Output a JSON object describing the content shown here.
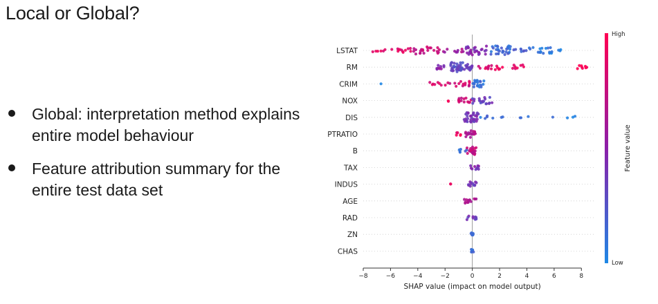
{
  "slide": {
    "title": "Local or Global?",
    "bullets": [
      "Global:  interpretation method explains entire model behaviour",
      "Feature attribution summary for the entire test data set"
    ]
  },
  "colors": {
    "high": "#ff0052",
    "low": "#1e88e5",
    "mid": "#8b1fa9",
    "text": "#1a1a1a"
  },
  "chart_data": {
    "type": "scatter",
    "subtype": "beeswarm",
    "features": [
      "LSTAT",
      "RM",
      "CRIM",
      "NOX",
      "DIS",
      "PTRATIO",
      "B",
      "TAX",
      "INDUS",
      "AGE",
      "RAD",
      "ZN",
      "CHAS"
    ],
    "xlabel": "SHAP value (impact on model output)",
    "xlim": [
      -8,
      9
    ],
    "xticks": [
      -8,
      -6,
      -4,
      -2,
      0,
      2,
      4,
      6,
      8
    ],
    "colorbar": {
      "label": "Feature value",
      "high": "High",
      "low": "Low"
    },
    "series": [
      {
        "feature": "LSTAT",
        "clusters": [
          {
            "x": -7.3,
            "x2": -6.2,
            "n": 6,
            "color": 0.9
          },
          {
            "x": -6.0,
            "x2": -4.4,
            "n": 12,
            "color": 0.85
          },
          {
            "x": -4.3,
            "x2": -2.3,
            "n": 22,
            "color": 0.75
          },
          {
            "x": -2.2,
            "x2": -0.6,
            "n": 10,
            "color": 0.6
          },
          {
            "x": -0.5,
            "x2": 1.1,
            "n": 30,
            "color": 0.45
          },
          {
            "x": 1.2,
            "x2": 2.8,
            "n": 30,
            "color": 0.15
          },
          {
            "x": 2.9,
            "x2": 4.0,
            "n": 8,
            "color": 0.2
          },
          {
            "x": 4.1,
            "x2": 5.9,
            "n": 18,
            "color": 0.08
          },
          {
            "x": 6.0,
            "x2": 6.6,
            "n": 3,
            "color": 0.05
          }
        ]
      },
      {
        "feature": "RM",
        "clusters": [
          {
            "x": -2.6,
            "x2": -1.8,
            "n": 10,
            "color": 0.5
          },
          {
            "x": -1.7,
            "x2": -0.7,
            "n": 35,
            "color": 0.3
          },
          {
            "x": -0.6,
            "x2": 0.0,
            "n": 18,
            "color": 0.35
          },
          {
            "x": 0.4,
            "x2": 1.6,
            "n": 10,
            "color": 0.85
          },
          {
            "x": 1.6,
            "x2": 3.8,
            "n": 14,
            "color": 0.92
          },
          {
            "x": 7.7,
            "x2": 8.4,
            "n": 8,
            "color": 0.97
          }
        ]
      },
      {
        "feature": "CRIM",
        "clusters": [
          {
            "x": -6.8,
            "x2": -6.6,
            "n": 1,
            "color": 0.1
          },
          {
            "x": -3.3,
            "x2": -1.8,
            "n": 8,
            "color": 0.88
          },
          {
            "x": -1.8,
            "x2": -0.1,
            "n": 14,
            "color": 0.8
          },
          {
            "x": 0.0,
            "x2": 0.9,
            "n": 22,
            "color": 0.12
          }
        ]
      },
      {
        "feature": "NOX",
        "clusters": [
          {
            "x": -2.0,
            "x2": -1.7,
            "n": 2,
            "color": 0.95
          },
          {
            "x": -1.0,
            "x2": 0.0,
            "n": 14,
            "color": 0.8
          },
          {
            "x": 0.0,
            "x2": 1.5,
            "n": 20,
            "color": 0.35
          }
        ]
      },
      {
        "feature": "DIS",
        "clusters": [
          {
            "x": -0.6,
            "x2": 0.5,
            "n": 35,
            "color": 0.4
          },
          {
            "x": 0.6,
            "x2": 1.6,
            "n": 5,
            "color": 0.12
          },
          {
            "x": 1.9,
            "x2": 2.3,
            "n": 2,
            "color": 0.1
          },
          {
            "x": 3.1,
            "x2": 3.6,
            "n": 2,
            "color": 0.08
          },
          {
            "x": 4.0,
            "x2": 4.2,
            "n": 1,
            "color": 0.08
          },
          {
            "x": 5.8,
            "x2": 6.0,
            "n": 1,
            "color": 0.06
          },
          {
            "x": 6.8,
            "x2": 7.9,
            "n": 3,
            "color": 0.05
          }
        ]
      },
      {
        "feature": "PTRATIO",
        "clusters": [
          {
            "x": -1.2,
            "x2": -0.6,
            "n": 5,
            "color": 0.9
          },
          {
            "x": -0.6,
            "x2": 0.3,
            "n": 20,
            "color": 0.65
          }
        ]
      },
      {
        "feature": "B",
        "clusters": [
          {
            "x": -1.3,
            "x2": -0.4,
            "n": 6,
            "color": 0.15
          },
          {
            "x": -0.4,
            "x2": 0.3,
            "n": 24,
            "color": 0.75
          }
        ]
      },
      {
        "feature": "TAX",
        "clusters": [
          {
            "x": -0.3,
            "x2": 0.5,
            "n": 12,
            "color": 0.45
          }
        ]
      },
      {
        "feature": "INDUS",
        "clusters": [
          {
            "x": -1.6,
            "x2": -1.3,
            "n": 2,
            "color": 0.92
          },
          {
            "x": -0.3,
            "x2": 0.3,
            "n": 12,
            "color": 0.4
          }
        ]
      },
      {
        "feature": "AGE",
        "clusters": [
          {
            "x": -0.6,
            "x2": 0.3,
            "n": 14,
            "color": 0.6
          }
        ]
      },
      {
        "feature": "RAD",
        "clusters": [
          {
            "x": -0.4,
            "x2": 0.3,
            "n": 10,
            "color": 0.35
          }
        ]
      },
      {
        "feature": "ZN",
        "clusters": [
          {
            "x": -0.1,
            "x2": 0.1,
            "n": 6,
            "color": 0.2
          }
        ]
      },
      {
        "feature": "CHAS",
        "clusters": [
          {
            "x": -0.1,
            "x2": 0.1,
            "n": 8,
            "color": 0.15
          }
        ]
      }
    ]
  }
}
